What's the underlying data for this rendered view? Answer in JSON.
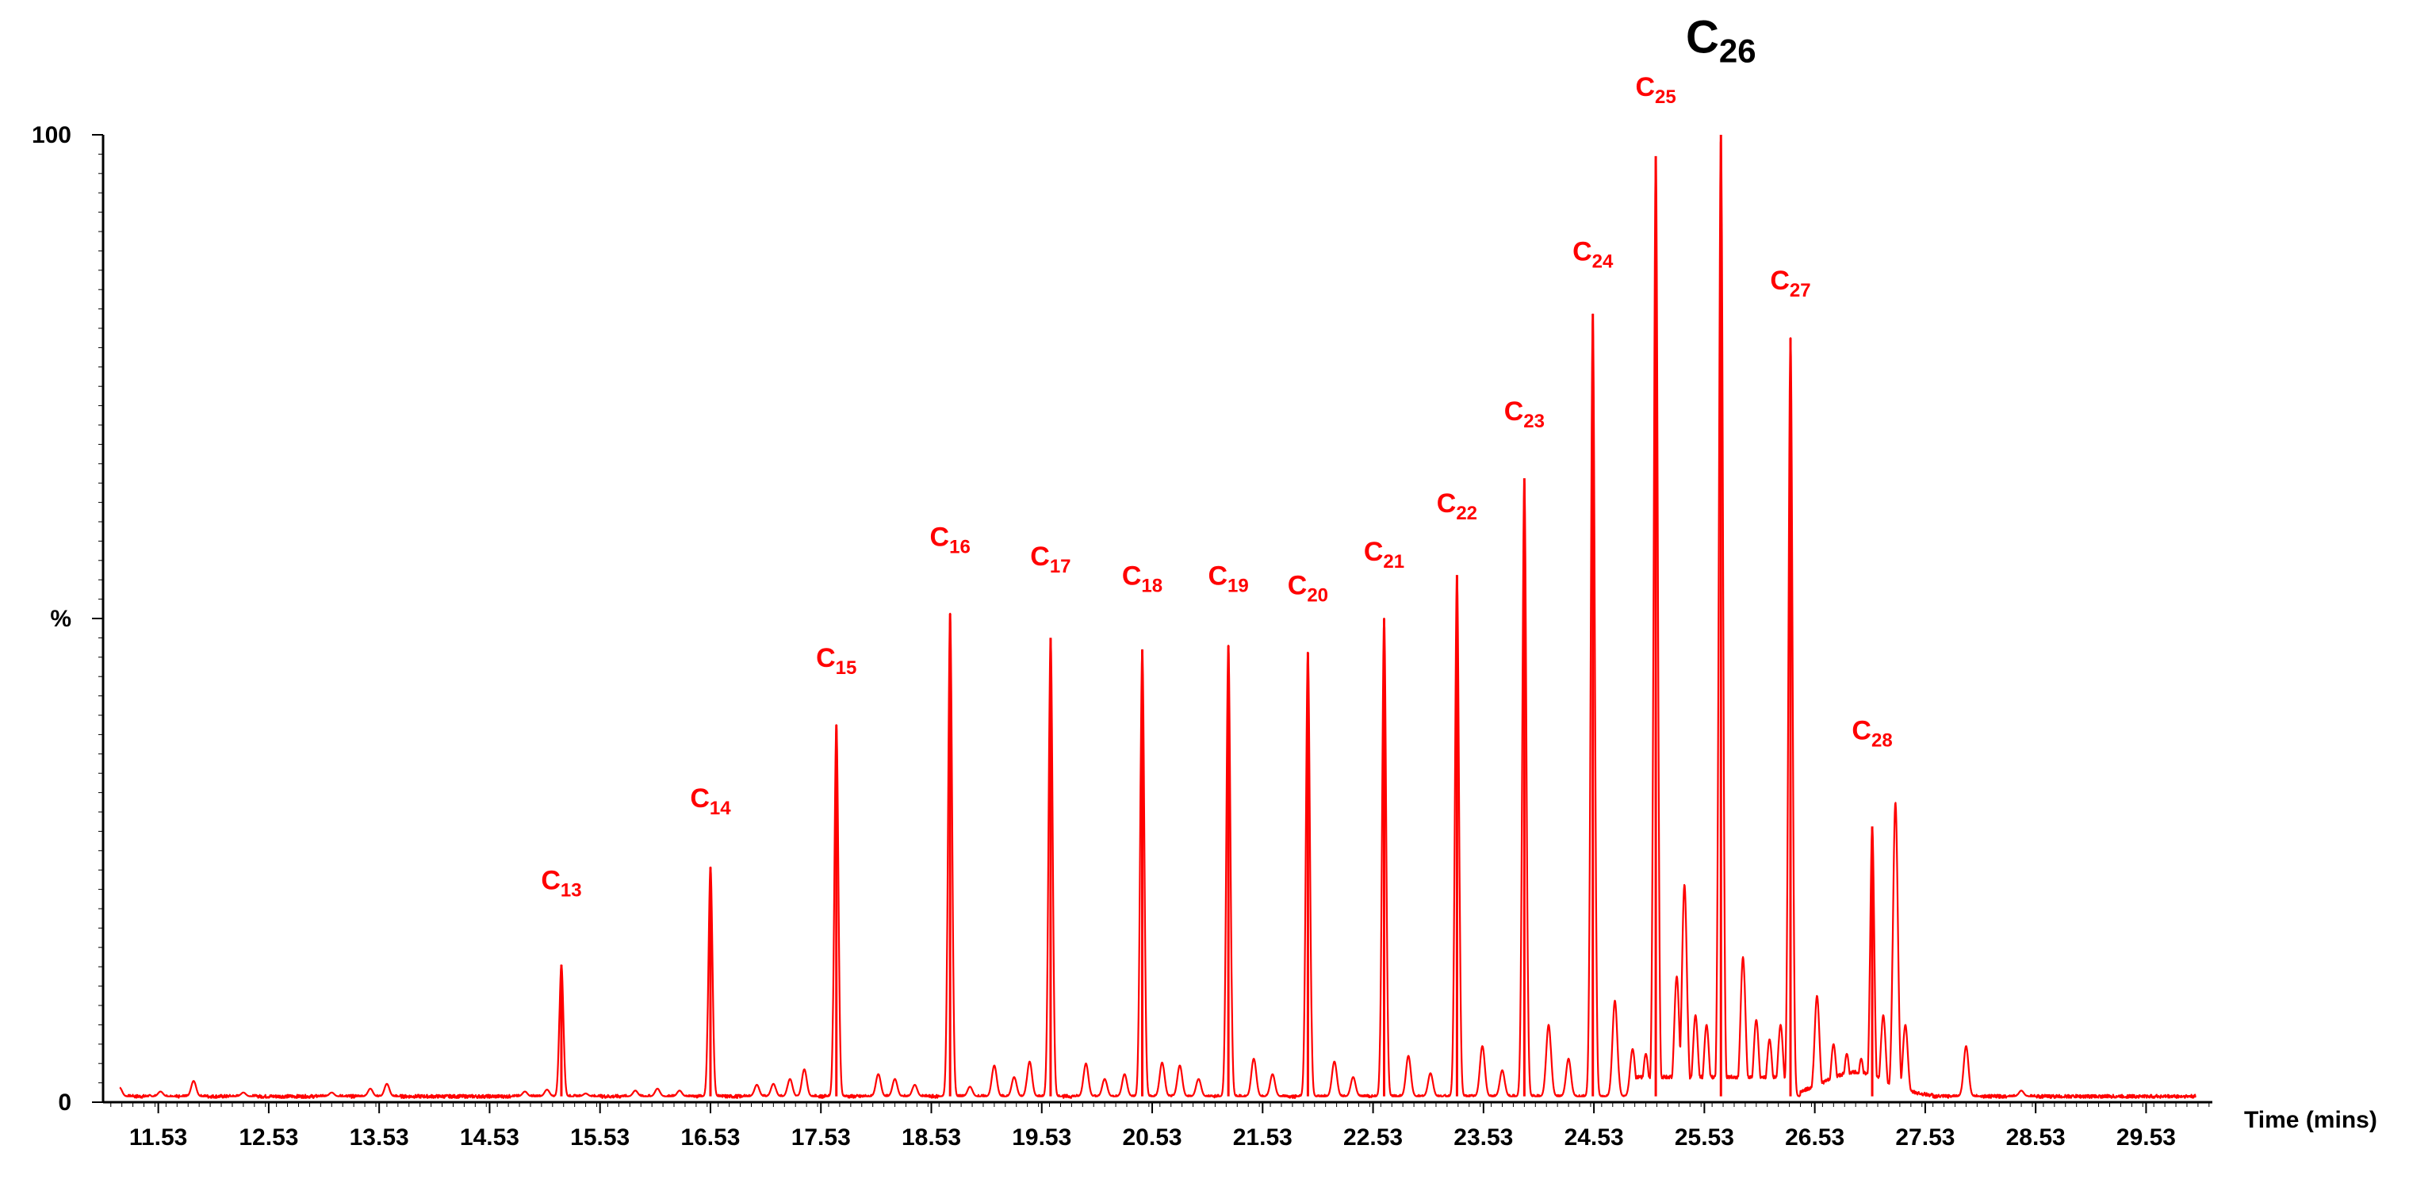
{
  "chart_data": {
    "type": "line",
    "title": "",
    "xlabel": "Time (mins)",
    "ylabel": "%",
    "xlim": [
      11.03,
      30.13
    ],
    "ylim": [
      0,
      100
    ],
    "x_ticks": [
      "11.53",
      "12.53",
      "13.53",
      "14.53",
      "15.53",
      "16.53",
      "17.53",
      "18.53",
      "19.53",
      "20.53",
      "21.53",
      "22.53",
      "23.53",
      "24.53",
      "25.53",
      "26.53",
      "27.53",
      "28.53",
      "29.53"
    ],
    "y_tick_labels": [
      {
        "value": 100,
        "label": "100"
      },
      {
        "value": 50,
        "label": "%"
      },
      {
        "value": 0,
        "label": "0"
      }
    ],
    "baseline": 0.6,
    "major_peaks": [
      {
        "label": "C13",
        "prefix": "C",
        "sub": "13",
        "x": 15.18,
        "y": 14.2,
        "label_y": 22.0
      },
      {
        "label": "C14",
        "prefix": "C",
        "sub": "14",
        "x": 16.53,
        "y": 24.3,
        "label_y": 30.5
      },
      {
        "label": "C15",
        "prefix": "C",
        "sub": "15",
        "x": 17.67,
        "y": 39.0,
        "label_y": 45.0
      },
      {
        "label": "C16",
        "prefix": "C",
        "sub": "16",
        "x": 18.7,
        "y": 50.5,
        "label_y": 57.5
      },
      {
        "label": "C17",
        "prefix": "C",
        "sub": "17",
        "x": 19.61,
        "y": 48.0,
        "label_y": 55.5
      },
      {
        "label": "C18",
        "prefix": "C",
        "sub": "18",
        "x": 20.44,
        "y": 46.8,
        "label_y": 53.5
      },
      {
        "label": "C19",
        "prefix": "C",
        "sub": "19",
        "x": 21.22,
        "y": 47.2,
        "label_y": 53.5
      },
      {
        "label": "C20",
        "prefix": "C",
        "sub": "20",
        "x": 21.94,
        "y": 46.5,
        "label_y": 52.5
      },
      {
        "label": "C21",
        "prefix": "C",
        "sub": "21",
        "x": 22.63,
        "y": 50.0,
        "label_y": 56.0
      },
      {
        "label": "C22",
        "prefix": "C",
        "sub": "22",
        "x": 23.29,
        "y": 54.5,
        "label_y": 61.0
      },
      {
        "label": "C23",
        "prefix": "C",
        "sub": "23",
        "x": 23.9,
        "y": 64.5,
        "label_y": 70.5
      },
      {
        "label": "C24",
        "prefix": "C",
        "sub": "24",
        "x": 24.52,
        "y": 81.5,
        "label_y": 87.0
      },
      {
        "label": "C25",
        "prefix": "C",
        "sub": "25",
        "x": 25.09,
        "y": 97.8,
        "label_y": 104.0
      },
      {
        "label": "C26",
        "prefix": "C",
        "sub": "26",
        "x": 25.68,
        "y": 100.0,
        "label_y": 108.5,
        "big": true
      },
      {
        "label": "C27",
        "prefix": "C",
        "sub": "27",
        "x": 26.31,
        "y": 79.0,
        "label_y": 84.0
      },
      {
        "label": "C28",
        "prefix": "C",
        "sub": "28",
        "x": 27.05,
        "y": 28.5,
        "label_y": 37.5,
        "label_x": 27.05
      }
    ],
    "minor_peaks": [
      {
        "x": 11.18,
        "y": 1.5
      },
      {
        "x": 11.55,
        "y": 1.1
      },
      {
        "x": 11.85,
        "y": 2.2
      },
      {
        "x": 12.3,
        "y": 1.0
      },
      {
        "x": 13.1,
        "y": 1.0
      },
      {
        "x": 13.45,
        "y": 1.4
      },
      {
        "x": 13.6,
        "y": 1.9
      },
      {
        "x": 14.85,
        "y": 1.1
      },
      {
        "x": 15.05,
        "y": 1.3
      },
      {
        "x": 15.4,
        "y": 0.9
      },
      {
        "x": 15.85,
        "y": 1.2
      },
      {
        "x": 16.05,
        "y": 1.4
      },
      {
        "x": 16.25,
        "y": 1.2
      },
      {
        "x": 16.95,
        "y": 1.8
      },
      {
        "x": 17.1,
        "y": 1.9
      },
      {
        "x": 17.25,
        "y": 2.4
      },
      {
        "x": 17.38,
        "y": 3.4
      },
      {
        "x": 18.05,
        "y": 2.9
      },
      {
        "x": 18.2,
        "y": 2.4
      },
      {
        "x": 18.38,
        "y": 1.8
      },
      {
        "x": 18.88,
        "y": 1.6
      },
      {
        "x": 19.1,
        "y": 3.8
      },
      {
        "x": 19.28,
        "y": 2.6
      },
      {
        "x": 19.42,
        "y": 4.2
      },
      {
        "x": 19.93,
        "y": 4.0
      },
      {
        "x": 20.1,
        "y": 2.4
      },
      {
        "x": 20.28,
        "y": 2.9
      },
      {
        "x": 20.62,
        "y": 4.1
      },
      {
        "x": 20.78,
        "y": 3.8
      },
      {
        "x": 20.95,
        "y": 2.4
      },
      {
        "x": 21.45,
        "y": 4.5
      },
      {
        "x": 21.62,
        "y": 2.9
      },
      {
        "x": 22.18,
        "y": 4.2
      },
      {
        "x": 22.35,
        "y": 2.6
      },
      {
        "x": 22.85,
        "y": 4.8
      },
      {
        "x": 23.05,
        "y": 3.0
      },
      {
        "x": 23.52,
        "y": 5.8
      },
      {
        "x": 23.7,
        "y": 3.3
      },
      {
        "x": 24.12,
        "y": 8.0
      },
      {
        "x": 24.3,
        "y": 4.5
      },
      {
        "x": 24.72,
        "y": 10.5
      },
      {
        "x": 24.88,
        "y": 5.5
      },
      {
        "x": 25.0,
        "y": 5.0
      },
      {
        "x": 25.28,
        "y": 13.0
      },
      {
        "x": 25.35,
        "y": 22.5
      },
      {
        "x": 25.45,
        "y": 9.0
      },
      {
        "x": 25.55,
        "y": 8.0
      },
      {
        "x": 25.88,
        "y": 15.0
      },
      {
        "x": 26.0,
        "y": 8.5
      },
      {
        "x": 26.12,
        "y": 6.5
      },
      {
        "x": 26.22,
        "y": 8.0
      },
      {
        "x": 26.55,
        "y": 11.0
      },
      {
        "x": 26.7,
        "y": 6.0
      },
      {
        "x": 26.82,
        "y": 5.0
      },
      {
        "x": 26.95,
        "y": 4.5
      },
      {
        "x": 27.15,
        "y": 9.0
      },
      {
        "x": 27.26,
        "y": 31.0
      },
      {
        "x": 27.35,
        "y": 8.0
      },
      {
        "x": 27.9,
        "y": 5.8
      },
      {
        "x": 28.4,
        "y": 1.2
      }
    ]
  }
}
